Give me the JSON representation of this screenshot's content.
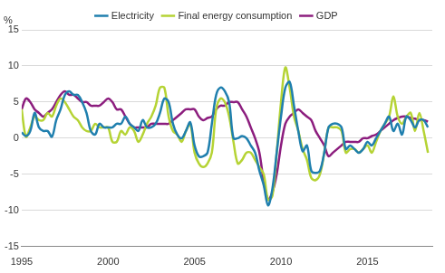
{
  "chart_data": {
    "type": "line",
    "ylabel": "%",
    "x": [
      1995,
      1995.25,
      1995.5,
      1995.75,
      1996,
      1996.25,
      1996.5,
      1996.75,
      1997,
      1997.25,
      1997.5,
      1997.75,
      1998,
      1998.25,
      1998.5,
      1998.75,
      1999,
      1999.25,
      1999.5,
      1999.75,
      2000,
      2000.25,
      2000.5,
      2000.75,
      2001,
      2001.25,
      2001.5,
      2001.75,
      2002,
      2002.25,
      2002.5,
      2002.75,
      2003,
      2003.25,
      2003.5,
      2003.75,
      2004,
      2004.25,
      2004.5,
      2004.75,
      2005,
      2005.25,
      2005.5,
      2005.75,
      2006,
      2006.25,
      2006.5,
      2006.75,
      2007,
      2007.25,
      2007.5,
      2007.75,
      2008,
      2008.25,
      2008.5,
      2008.75,
      2009,
      2009.25,
      2009.5,
      2009.75,
      2010,
      2010.25,
      2010.5,
      2010.75,
      2011,
      2011.25,
      2011.5,
      2011.75,
      2012,
      2012.25,
      2012.5,
      2012.75,
      2013,
      2013.25,
      2013.5,
      2013.75,
      2014,
      2014.25,
      2014.5,
      2014.75,
      2015,
      2015.25,
      2015.5,
      2015.75,
      2016,
      2016.25,
      2016.5,
      2016.75,
      2017,
      2017.25,
      2017.5,
      2017.75,
      2018,
      2018.25,
      2018.5
    ],
    "series": [
      {
        "name": "Electricity",
        "color": "#1f7fae",
        "values": [
          0.8,
          0.3,
          1,
          3.5,
          1.5,
          1,
          1,
          0.2,
          2.5,
          4,
          6,
          6.5,
          6,
          6,
          5,
          3.5,
          1,
          0.5,
          2,
          1.5,
          1.5,
          1.5,
          2,
          2,
          3,
          2,
          1.5,
          1,
          2.5,
          1.5,
          1.5,
          2,
          3.5,
          5.5,
          5,
          2,
          0.5,
          0,
          1,
          2.2,
          -1,
          -2.5,
          -2.5,
          -2,
          2,
          6,
          7,
          6.5,
          5,
          0,
          0,
          0.3,
          0,
          -1,
          -2,
          -4.5,
          -6.5,
          -9.3,
          -7,
          -2,
          3,
          7,
          7.8,
          4.5,
          1,
          -1.8,
          -1,
          -4.5,
          -4.8,
          -4.5,
          -2,
          1.5,
          2,
          2,
          1.5,
          -1.5,
          -1,
          -1.5,
          -2,
          -1.5,
          -0.5,
          -1,
          0,
          1,
          2,
          3,
          1,
          2,
          0.5,
          3,
          2.5,
          1.5,
          2.5,
          2.5,
          1.5
        ]
      },
      {
        "name": "Final energy consumption",
        "color": "#b5d334",
        "values": [
          4,
          0.2,
          1.5,
          3,
          2.5,
          2.5,
          3.5,
          3,
          4.5,
          5.5,
          5,
          4,
          3,
          2.5,
          1.5,
          1,
          1,
          2,
          1.5,
          1.5,
          1.5,
          -0.5,
          -0.5,
          1,
          0.5,
          1.5,
          1,
          -0.5,
          0.5,
          2,
          3,
          4.5,
          7,
          7,
          3,
          1,
          0.5,
          -0.5,
          1,
          2,
          -2,
          -3.5,
          -4,
          -3.5,
          -2,
          4,
          5.5,
          5,
          3,
          -0.5,
          -3.5,
          -3,
          -2,
          -2,
          -3,
          -4,
          -5,
          -8.5,
          -8,
          -2,
          5,
          9.8,
          7,
          3,
          1,
          -1.5,
          -3,
          -5.5,
          -5.8,
          -5,
          -2,
          1.5,
          1.5,
          1.5,
          1,
          -2,
          -1.5,
          -1.5,
          -2,
          -1.5,
          -1,
          -2,
          -0.5,
          1,
          2,
          3,
          5.8,
          3,
          2,
          3,
          3.5,
          1,
          3.5,
          1,
          -2
        ]
      },
      {
        "name": "GDP",
        "color": "#8c1d7e",
        "values": [
          4,
          5.5,
          5,
          4,
          3.5,
          3,
          3.5,
          4,
          5,
          6,
          6.5,
          6,
          6,
          5.5,
          5,
          5,
          4.5,
          4.5,
          4.5,
          5,
          5.5,
          5,
          4,
          4,
          3,
          2,
          1.5,
          1.5,
          1.5,
          1.5,
          2,
          2,
          2,
          2,
          2,
          2.5,
          3,
          3.5,
          4,
          4,
          4,
          3,
          2.5,
          2.8,
          3,
          4,
          4.5,
          4.5,
          5,
          5,
          5,
          4,
          3,
          1.5,
          0,
          -2,
          -6,
          -8.5,
          -7.5,
          -5,
          -1,
          2,
          3,
          3.5,
          4,
          3.5,
          3,
          2.5,
          1,
          0,
          -1,
          -2.5,
          -2,
          -1.5,
          -1,
          -0.5,
          -0.5,
          -0.5,
          -0.5,
          0,
          0,
          0.3,
          0.5,
          1,
          1.5,
          2,
          2.5,
          2.8,
          3,
          3,
          2.8,
          2.7,
          2.5,
          2.5,
          2.3
        ]
      }
    ],
    "xlim": [
      1995,
      2018.75
    ],
    "xticks": [
      1995,
      2000,
      2005,
      2010,
      2015
    ],
    "ylim": [
      -15,
      15
    ],
    "yticks": [
      -15,
      -10,
      -5,
      0,
      5,
      10,
      15
    ],
    "grid": true,
    "legend": "top"
  }
}
